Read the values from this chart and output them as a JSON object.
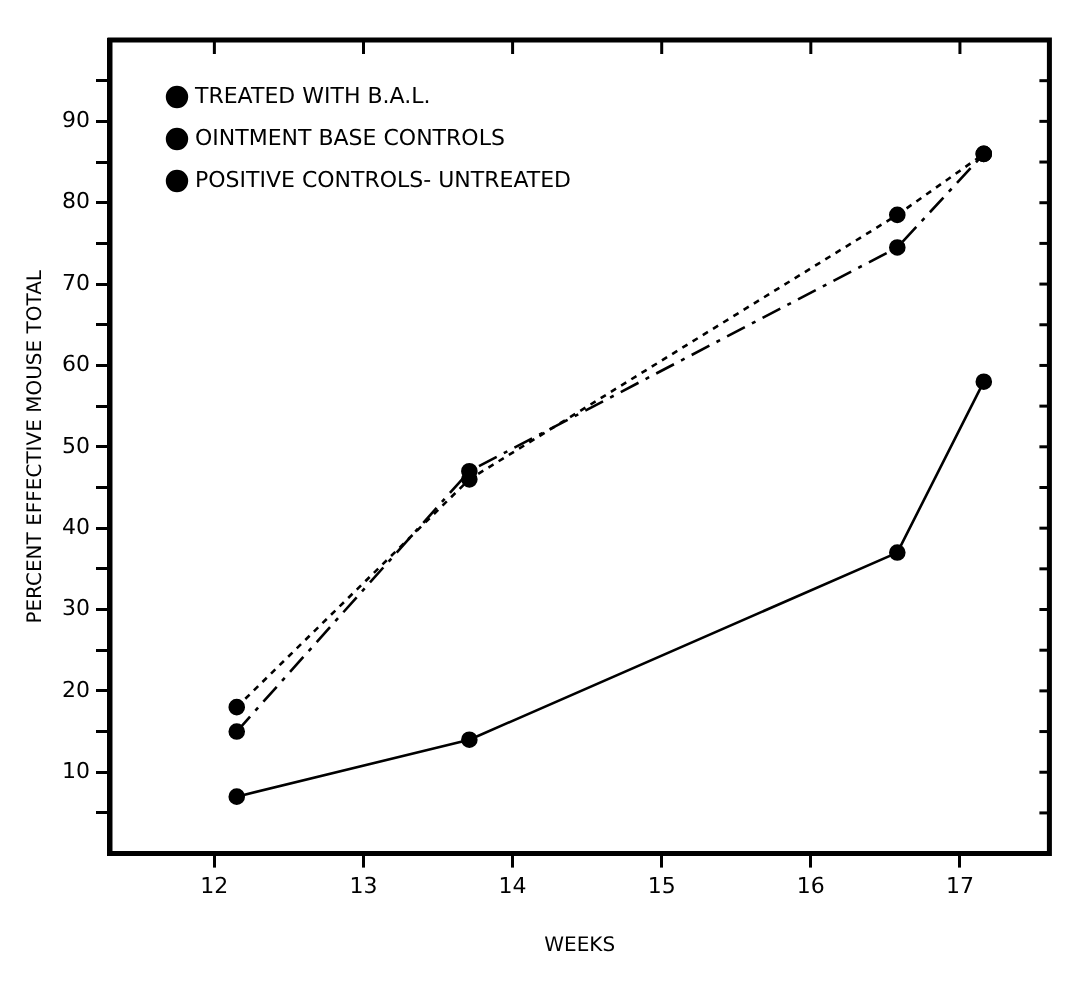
{
  "chart_data": {
    "type": "line",
    "xlabel": "WEEKS",
    "ylabel": "PERCENT EFFECTIVE MOUSE TOTAL",
    "xlim": [
      11.3,
      17.6
    ],
    "xticks": [
      12,
      13,
      14,
      15,
      16,
      17
    ],
    "ylim": [
      0,
      100
    ],
    "yticks": [
      {
        "value": 5,
        "label": null
      },
      10,
      {
        "value": 15,
        "label": null
      },
      20,
      {
        "value": 25,
        "label": null
      },
      30,
      {
        "value": 35,
        "label": null
      },
      40,
      {
        "value": 45,
        "label": null
      },
      50,
      {
        "value": 55,
        "label": null
      },
      60,
      {
        "value": 65,
        "label": null
      },
      70,
      {
        "value": 75,
        "label": null
      },
      80,
      {
        "value": 85,
        "label": null
      },
      90,
      {
        "value": 95,
        "label": null
      }
    ],
    "grid": false,
    "legend": "top left",
    "marker": "circle",
    "series": [
      {
        "name": "TREATED WITH B.A.L.",
        "color": "#000000",
        "line_style": "solid",
        "x": [
          12.15,
          13.71,
          16.58,
          17.16
        ],
        "values": [
          7,
          14,
          37,
          58
        ]
      },
      {
        "name": "OINTMENT BASE CONTROLS",
        "color": "#000000",
        "line_style": "dashed",
        "x": [
          12.15,
          13.71,
          16.58,
          17.16
        ],
        "values": [
          15,
          47,
          74.5,
          86
        ]
      },
      {
        "name": "POSITIVE CONTROLS- UNTREATED",
        "color": "#000000",
        "line_style": "dotted",
        "x": [
          12.15,
          13.71,
          16.58,
          17.16
        ],
        "values": [
          18,
          46,
          78.5,
          86
        ]
      }
    ]
  }
}
